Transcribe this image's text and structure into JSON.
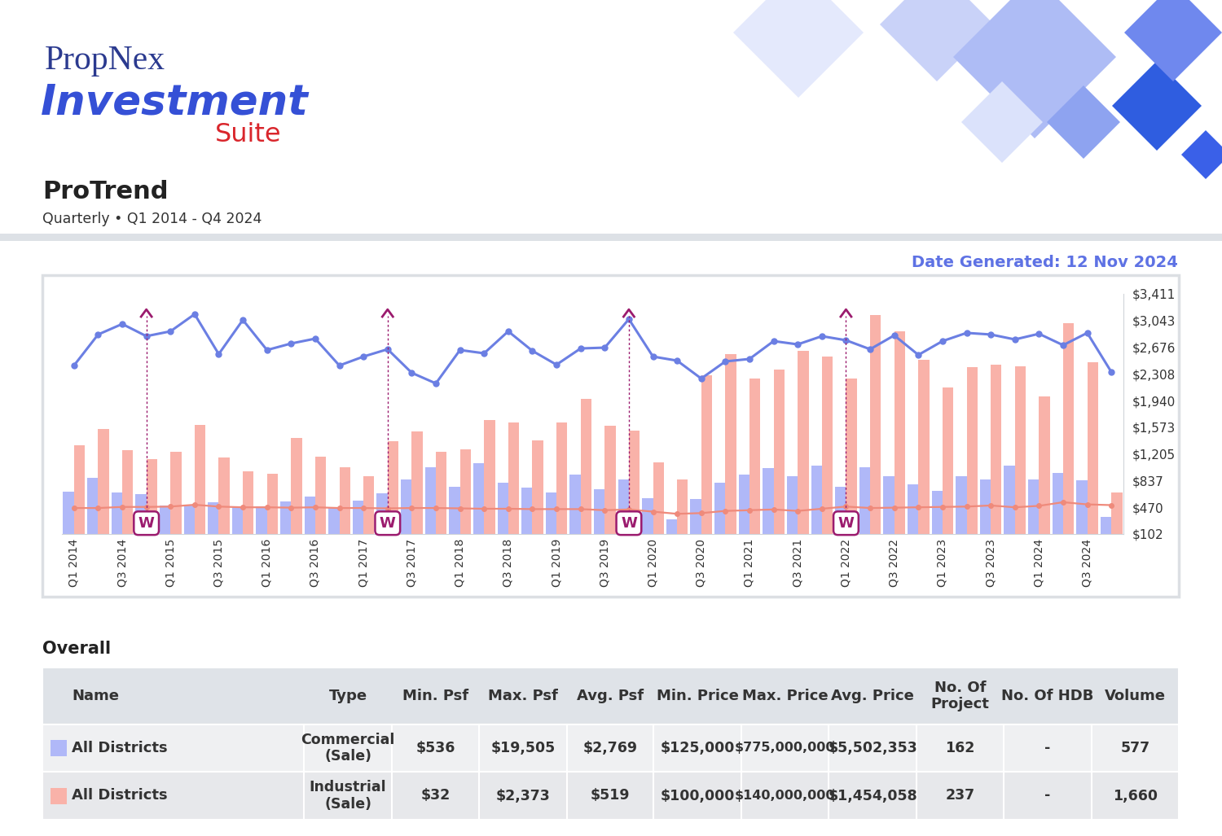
{
  "header": {
    "logo": [
      "PropNex",
      "Investment",
      "Suite"
    ],
    "title": "ProTrend",
    "subtitle": "Quarterly • Q1 2014 - Q4 2024",
    "date": "Date Generated: 12 Nov 2024"
  },
  "chart_data": {
    "type": "bar",
    "categories": [
      "Q1 2014",
      null,
      "Q3 2014",
      null,
      "Q1 2015",
      null,
      "Q3 2015",
      null,
      "Q1 2016",
      null,
      "Q3 2016",
      null,
      "Q1 2017",
      null,
      "Q3 2017",
      null,
      "Q1 2018",
      null,
      "Q3 2018",
      null,
      "Q1 2019",
      null,
      "Q3 2019",
      null,
      "Q1 2020",
      null,
      "Q3 2020",
      null,
      "Q1 2021",
      null,
      "Q3 2021",
      null,
      "Q1 2022",
      null,
      "Q3 2022",
      null,
      "Q1 2023",
      null,
      "Q3 2023",
      null,
      "Q1 2024",
      null,
      "Q3 2024",
      null
    ],
    "series": [
      {
        "type": "bar",
        "color": "#b0b8f8",
        "values": [
          685,
          876,
          674,
          652,
          495,
          506,
          540,
          483,
          483,
          551,
          618,
          461,
          562,
          663,
          854,
          1022,
          753,
          1078,
          809,
          741,
          674,
          921,
          719,
          854,
          596,
          304,
          584,
          809,
          921,
          1011,
          899,
          1044,
          753,
          1022,
          899,
          786,
          697,
          899,
          854,
          1044,
          854,
          943,
          843,
          338
        ]
      },
      {
        "type": "bar",
        "color": "#f9b2a9",
        "values": [
          1325,
          1549,
          1257,
          1134,
          1235,
          1605,
          1156,
          966,
          932,
          1426,
          1168,
          1022,
          899,
          1381,
          1516,
          1235,
          1269,
          1673,
          1639,
          1392,
          1639,
          1964,
          1594,
          1527,
          1089,
          854,
          2290,
          2581,
          2244,
          2368,
          2626,
          2547,
          2244,
          3120,
          2895,
          2503,
          2121,
          2402,
          2435,
          2413,
          1998,
          3007,
          2469,
          674
        ]
      },
      {
        "type": "line",
        "color": "#6b7fe3",
        "marker": "circle",
        "values": [
          2424,
          2851,
          2996,
          2828,
          2895,
          3131,
          2581,
          3052,
          2637,
          2727,
          2794,
          2424,
          2547,
          2648,
          2323,
          2177,
          2637,
          2592,
          2895,
          2626,
          2435,
          2659,
          2670,
          3063,
          2547,
          2491,
          2244,
          2480,
          2514,
          2760,
          2715,
          2828,
          2772,
          2648,
          2839,
          2570,
          2760,
          2873,
          2851,
          2783,
          2861,
          2704,
          2873,
          2334
        ]
      },
      {
        "type": "line",
        "color": "#ef8a7b",
        "marker": "circle",
        "values": [
          460,
          460,
          475,
          475,
          480,
          505,
          480,
          470,
          470,
          465,
          470,
          460,
          460,
          455,
          460,
          460,
          455,
          450,
          450,
          445,
          445,
          445,
          430,
          440,
          410,
          380,
          390,
          420,
          430,
          440,
          420,
          450,
          480,
          460,
          465,
          470,
          475,
          480,
          495,
          470,
          490,
          540,
          510,
          500
        ]
      }
    ],
    "ylim": [
      102,
      3411
    ],
    "yticks": [
      {
        "value": 102,
        "label": "$102"
      },
      {
        "value": 470,
        "label": "$470"
      },
      {
        "value": 837,
        "label": "$837"
      },
      {
        "value": 1205,
        "label": "$1,205"
      },
      {
        "value": 1573,
        "label": "$1,573"
      },
      {
        "value": 1940,
        "label": "$1,940"
      },
      {
        "value": 2308,
        "label": "$2,308"
      },
      {
        "value": 2676,
        "label": "$2,676"
      },
      {
        "value": 3043,
        "label": "$3,043"
      },
      {
        "value": 3411,
        "label": "$3,411"
      }
    ],
    "grid": false,
    "annotations": [
      {
        "text": "W",
        "index": 3
      },
      {
        "text": "W",
        "index": 13
      },
      {
        "text": "W",
        "index": 23
      },
      {
        "text": "W",
        "index": 32
      }
    ]
  },
  "table": {
    "title": "Overall",
    "columns": [
      "Name",
      "Type",
      "Min. Psf",
      "Max. Psf",
      "Avg. Psf",
      "Min. Price",
      "Max. Price",
      "Avg. Price",
      "No. Of Project",
      "No. Of HDB",
      "Volume"
    ],
    "rows": [
      {
        "color": "#b0b8f8",
        "cells": [
          "All Districts",
          "Commercial (Sale)",
          "$536",
          "$19,505",
          "$2,769",
          "$125,000",
          "$775,000,000",
          "$5,502,353",
          "162",
          "-",
          "577"
        ]
      },
      {
        "color": "#f9b2a9",
        "cells": [
          "All Districts",
          "Industrial (Sale)",
          "$32",
          "$2,373",
          "$519",
          "$100,000",
          "$140,000,000",
          "$1,454,058",
          "237",
          "-",
          "1,660"
        ]
      }
    ]
  }
}
